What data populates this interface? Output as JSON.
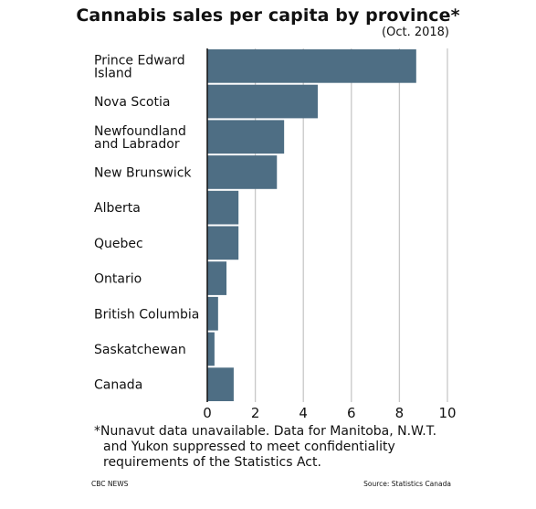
{
  "title": "Cannabis sales per capita by province*",
  "subtitle": "(Oct. 2018)",
  "footnote": {
    "line1": "*Nunavut data unavailable. Data for Manitoba, N.W.T.",
    "line2": "and Yukon suppressed to meet confidentiality",
    "line3": "requirements of the Statistics Act."
  },
  "credit_left": "CBC NEWS",
  "credit_right": "Source: Statistics Canada",
  "colors": {
    "bar": "#4e6e84",
    "grid": "#c8c8c8",
    "axis": "#111111"
  },
  "chart_data": {
    "type": "bar",
    "orientation": "horizontal",
    "title": "Cannabis sales per capita by province*",
    "subtitle": "(Oct. 2018)",
    "categories": [
      [
        "Prince Edward",
        "Island"
      ],
      [
        "Nova Scotia"
      ],
      [
        "Newfoundland",
        "and Labrador"
      ],
      [
        "New Brunswick"
      ],
      [
        "Alberta"
      ],
      [
        "Quebec"
      ],
      [
        "Ontario"
      ],
      [
        "British Columbia"
      ],
      [
        "Saskatchewan"
      ],
      [
        "Canada"
      ]
    ],
    "values": [
      8.7,
      4.6,
      3.2,
      2.9,
      1.3,
      1.3,
      0.8,
      0.45,
      0.3,
      1.1
    ],
    "xlim": [
      0,
      10
    ],
    "xticks": [
      0,
      2,
      4,
      6,
      8,
      10
    ],
    "grid": true
  }
}
